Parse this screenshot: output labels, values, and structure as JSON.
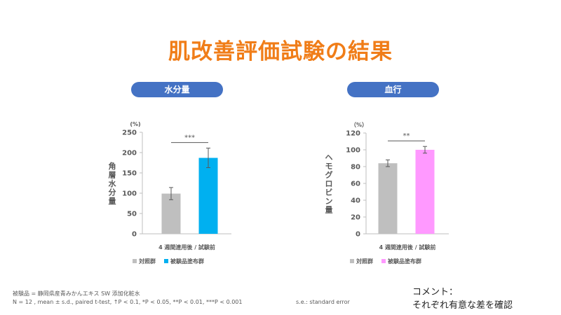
{
  "page": {
    "title": "肌改善評価試験の結果",
    "footnote_product": "被験品 = 静岡県産青みかんエキス SW 添加化粧水",
    "footnote_stats": "N = 12 , mean ± s.d., paired t-test, ↑P < 0.1, *P < 0.05, **P < 0.01, ***P < 0.001",
    "footnote_se": "s.e.: standard error",
    "comment_line1": "コメント：",
    "comment_line2": "それぞれ有意な差を確認"
  },
  "colors": {
    "title": "#f07d18",
    "pill": "#4472c4",
    "control_bar": "#bfbfbf",
    "water_test_bar": "#00b0f0",
    "blood_test_bar": "#ff99ff",
    "text": "#595959"
  },
  "chart_data": [
    {
      "type": "bar",
      "title": "水分量",
      "unit": "(%)",
      "ylabel": "角層水分量",
      "xlabel": "4 週間連用後 / 試験前",
      "categories": [
        "対照群",
        "被験品塗布群"
      ],
      "series": [
        {
          "name": "対照群",
          "value": 99,
          "error": 15,
          "color": "#bfbfbf"
        },
        {
          "name": "被験品塗布群",
          "value": 187,
          "error": 24,
          "color": "#00b0f0"
        }
      ],
      "ylim": [
        0,
        250
      ],
      "yticks": [
        0,
        50,
        100,
        150,
        200,
        250
      ],
      "significance": "***",
      "legend_position": "bottom-left",
      "grid": false
    },
    {
      "type": "bar",
      "title": "血行",
      "unit": "（%）",
      "ylabel": "ヘモグロビン量",
      "xlabel": "4 週間連用後 / 試験前",
      "categories": [
        "対照群",
        "被験品塗布群"
      ],
      "series": [
        {
          "name": "対照群",
          "value": 84,
          "error": 4,
          "color": "#bfbfbf"
        },
        {
          "name": "被験品塗布群",
          "value": 100,
          "error": 4,
          "color": "#ff99ff"
        }
      ],
      "ylim": [
        0,
        120
      ],
      "yticks": [
        0,
        20,
        40,
        60,
        80,
        100,
        120
      ],
      "significance": "**",
      "legend_position": "bottom-left",
      "grid": false
    }
  ]
}
